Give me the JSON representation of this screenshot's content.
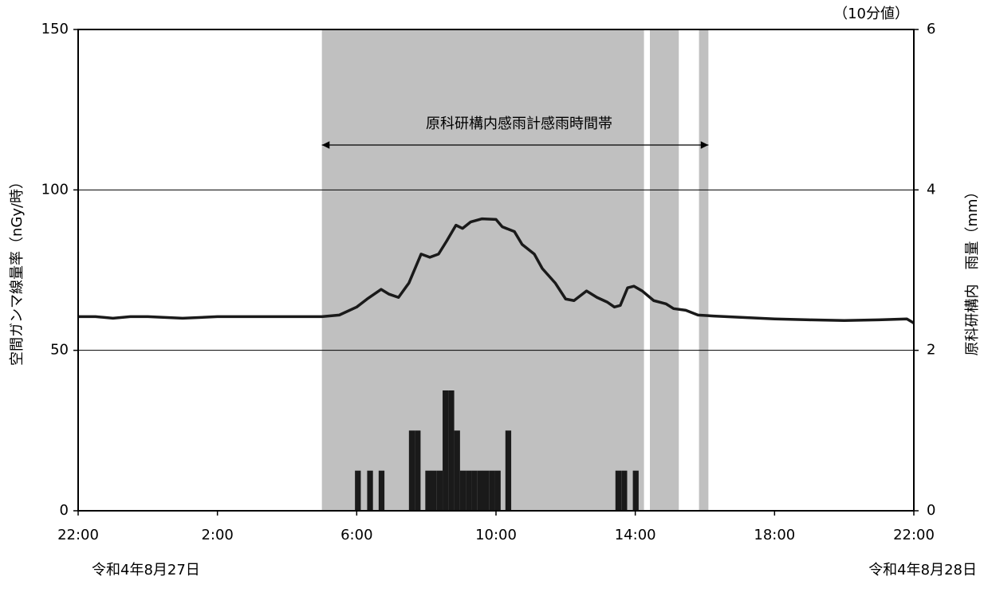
{
  "chart_data": {
    "type": "line",
    "ylabel": "空間ガンマ線量率（nGy/時）",
    "y2label": "原科研構内　雨量（mm）",
    "note": "（10分値）",
    "date_left": "令和4年8月27日",
    "date_right": "令和4年8月28日",
    "annotation": {
      "text": "原科研構内感雨計感雨時間帯",
      "x": [
        7,
        18.1
      ]
    },
    "rain_periods": [
      [
        7,
        16.25
      ],
      [
        16.42,
        17.25
      ],
      [
        17.83,
        18.1
      ]
    ],
    "rain_period_color": "#c0c0c0",
    "xlim": [
      0,
      24
    ],
    "xticks": [
      {
        "value": 0,
        "label": "22:00"
      },
      {
        "value": 4,
        "label": "2:00"
      },
      {
        "value": 8,
        "label": "6:00"
      },
      {
        "value": 12,
        "label": "10:00"
      },
      {
        "value": 16,
        "label": "14:00"
      },
      {
        "value": 20,
        "label": "18:00"
      },
      {
        "value": 24,
        "label": "22:00"
      }
    ],
    "ylim": [
      0,
      150
    ],
    "yticks": [
      0,
      50,
      100,
      150
    ],
    "y2lim": [
      0,
      6
    ],
    "y2ticks": [
      0,
      2,
      4,
      6
    ],
    "grid": true,
    "series": [
      {
        "name": "空間ガンマ線量率",
        "type": "line",
        "color": "#1a1a1a",
        "x": [
          0,
          0.5,
          1,
          1.5,
          2,
          3,
          4,
          5,
          6,
          7,
          7.5,
          8,
          8.3,
          8.7,
          8.93,
          9.2,
          9.5,
          9.85,
          10.1,
          10.35,
          10.58,
          10.85,
          11.04,
          11.27,
          11.6,
          12,
          12.18,
          12.53,
          12.75,
          13.1,
          13.33,
          13.7,
          14,
          14.24,
          14.6,
          14.9,
          15.2,
          15.4,
          15.57,
          15.78,
          15.96,
          16.2,
          16.53,
          16.88,
          17.1,
          17.45,
          17.8,
          18.25,
          20,
          21,
          22,
          23,
          23.8,
          24
        ],
        "values": [
          60.5,
          60.5,
          60,
          60.5,
          60.5,
          60,
          60.5,
          60.5,
          60.5,
          60.5,
          61,
          63.5,
          66,
          69,
          67.5,
          66.5,
          71,
          80,
          79,
          80,
          84,
          89,
          88,
          90,
          91,
          90.8,
          88.5,
          87,
          83,
          80,
          75.5,
          71,
          66,
          65.5,
          68.5,
          66.5,
          65,
          63.5,
          64,
          69.5,
          70,
          68.5,
          65.5,
          64.5,
          63,
          62.5,
          61,
          60.7,
          59.8,
          59.5,
          59.3,
          59.5,
          59.8,
          58.5
        ]
      },
      {
        "name": "雨量",
        "type": "bar",
        "axis": "y2",
        "color": "#1a1a1a",
        "x": [
          7.95,
          8.3,
          8.63,
          9.5,
          9.667,
          9.97,
          10.133,
          10.3,
          10.467,
          10.633,
          10.8,
          10.967,
          11.133,
          11.3,
          11.467,
          11.633,
          11.8,
          11.967,
          12.27,
          15.43,
          15.6,
          15.93
        ],
        "values": [
          0.5,
          0.5,
          0.5,
          1,
          1,
          0.5,
          0.5,
          0.5,
          1.5,
          1.5,
          1,
          0.5,
          0.5,
          0.5,
          0.5,
          0.5,
          0.5,
          0.5,
          1,
          0.5,
          0.5,
          0.5
        ]
      }
    ]
  }
}
